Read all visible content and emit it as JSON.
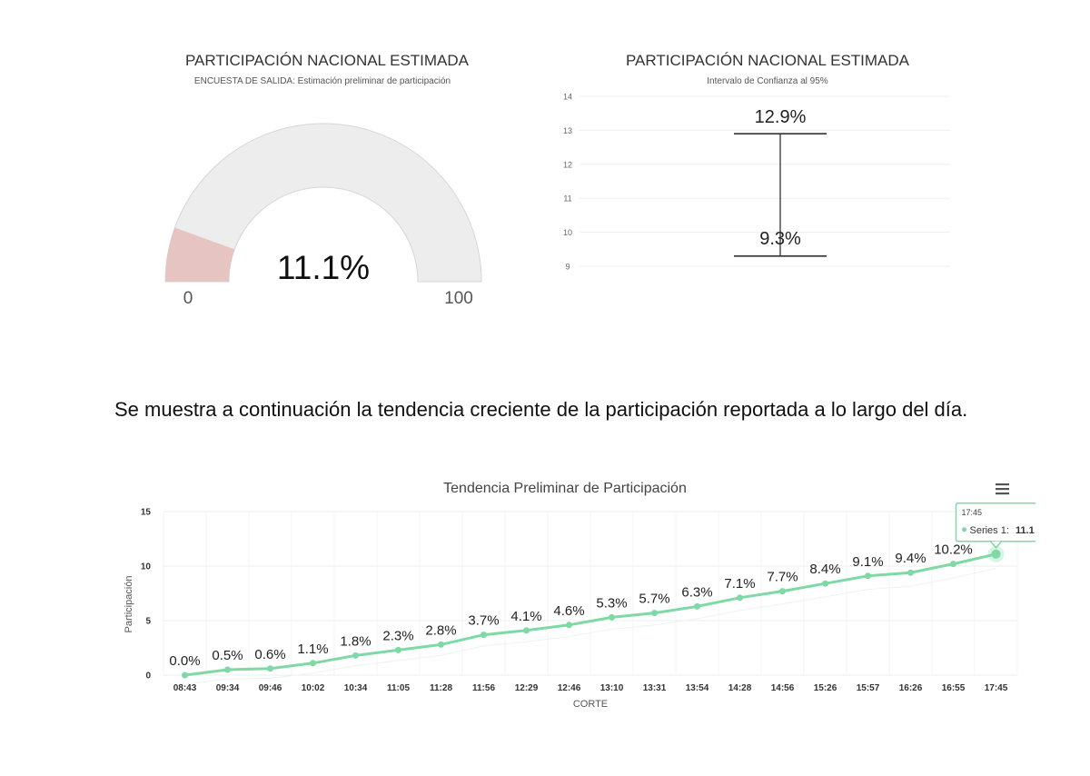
{
  "paragraph": {
    "text": "Se muestra a continuación la tendencia creciente de la participación reportada a lo largo del día."
  },
  "gauge": {
    "title": "PARTICIPACIÓN NACIONAL ESTIMADA",
    "subtitle": "ENCUESTA DE SALIDA: Estimación preliminar de participación",
    "value_label": "11.1%",
    "min_label": "0",
    "max_label": "100",
    "colors": {
      "track": "#ededed",
      "fill": "#e6c4c2"
    },
    "chart_data": {
      "type": "gauge",
      "value": 11.1,
      "min": 0,
      "max": 100
    }
  },
  "interval": {
    "title": "PARTICIPACIÓN NACIONAL ESTIMADA",
    "subtitle": "Intervalo de Confianza al 95%",
    "upper_label": "12.9%",
    "lower_label": "9.3%",
    "chart_data": {
      "type": "errorbar",
      "low": 9.3,
      "high": 12.9,
      "ylim": [
        9,
        14
      ],
      "yticks": [
        "9",
        "10",
        "11",
        "12",
        "13",
        "14"
      ]
    }
  },
  "trend": {
    "title": "Tendencia Preliminar de Participación",
    "menu_icon": "hamburger-menu-icon",
    "tooltip": {
      "time": "17:45",
      "series": "Series 1:",
      "value": "11.1"
    },
    "colors": {
      "line": "#7ed9a5",
      "grid": "#ececec"
    },
    "chart_data": {
      "type": "line",
      "title": "Tendencia Preliminar de Participación",
      "xlabel": "CORTE",
      "ylabel": "Participación",
      "ylim": [
        0,
        15
      ],
      "yticks": [
        "0",
        "5",
        "10",
        "15"
      ],
      "categories": [
        "08:43",
        "09:34",
        "09:46",
        "10:02",
        "10:34",
        "11:05",
        "11:28",
        "11:56",
        "12:29",
        "12:46",
        "13:10",
        "13:31",
        "13:54",
        "14:28",
        "14:56",
        "15:26",
        "15:57",
        "16:26",
        "16:55",
        "17:45"
      ],
      "series": [
        {
          "name": "Series 1",
          "values": [
            0.0,
            0.5,
            0.6,
            1.1,
            1.8,
            2.3,
            2.8,
            3.7,
            4.1,
            4.6,
            5.3,
            5.7,
            6.3,
            7.1,
            7.7,
            8.4,
            9.1,
            9.4,
            10.2,
            11.1
          ],
          "labels": [
            "0.0%",
            "0.5%",
            "0.6%",
            "1.1%",
            "1.8%",
            "2.3%",
            "2.8%",
            "3.7%",
            "4.1%",
            "4.6%",
            "5.3%",
            "5.7%",
            "6.3%",
            "7.1%",
            "7.7%",
            "8.4%",
            "9.1%",
            "9.4%",
            "10.2%",
            ""
          ]
        }
      ]
    }
  }
}
